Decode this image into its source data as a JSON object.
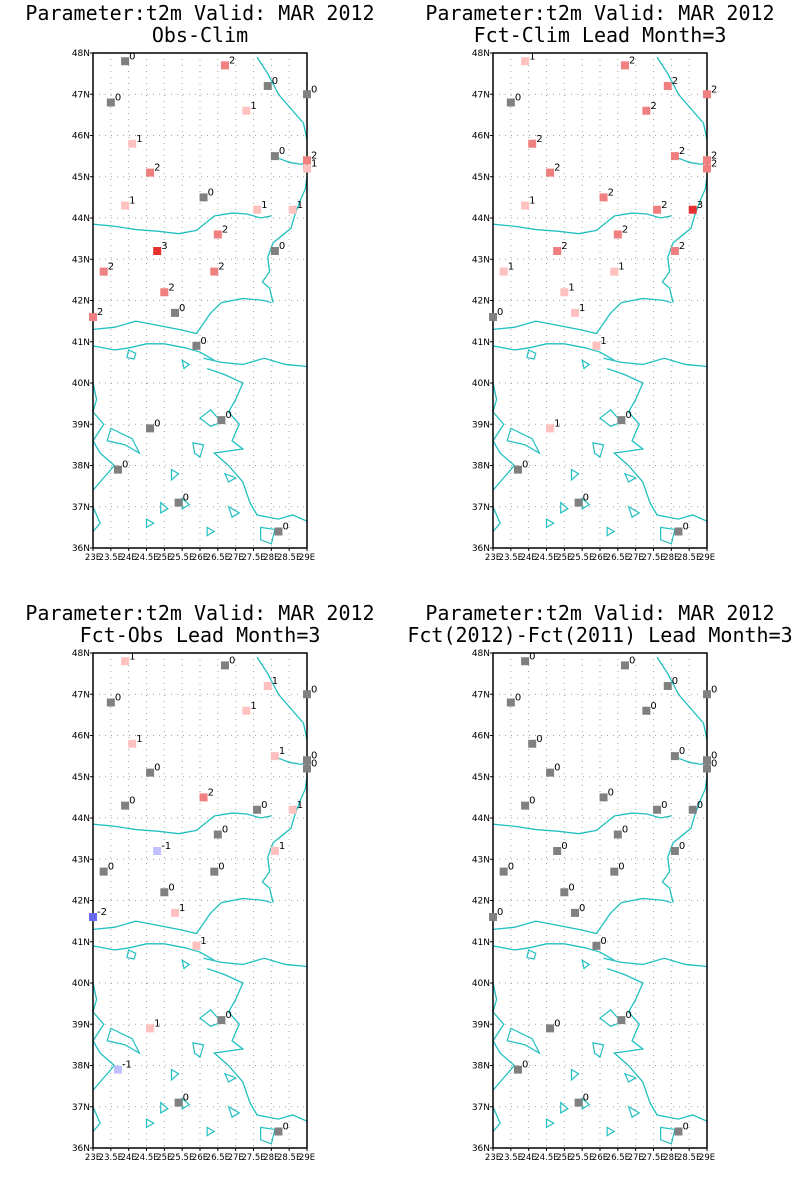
{
  "colors": {
    "coastline": "#20c0c0",
    "zero": "#808080",
    "pos1": "#ffc0c0",
    "pos2": "#f08080",
    "pos3": "#e83030",
    "neg1": "#c0c0ff",
    "neg2": "#6868f0",
    "grid": "#a0a0a0"
  },
  "axes": {
    "lat_ticks": [
      "48N",
      "47N",
      "46N",
      "45N",
      "44N",
      "43N",
      "42N",
      "41N",
      "40N",
      "39N",
      "38N",
      "37N",
      "36N"
    ],
    "lon_ticks": [
      "23E",
      "23.5E",
      "24E",
      "24.5E",
      "25E",
      "25.5E",
      "26E",
      "26.5E",
      "27E",
      "27.5E",
      "28E",
      "28.5E",
      "29E"
    ]
  },
  "panels": [
    {
      "title_line1": "Parameter:t2m Valid: MAR 2012",
      "title_line2": "Obs-Clim",
      "stations": [
        {
          "lon": 23.9,
          "lat": 47.8,
          "v": 0
        },
        {
          "lon": 26.7,
          "lat": 47.7,
          "v": 2
        },
        {
          "lon": 27.9,
          "lat": 47.2,
          "v": 0
        },
        {
          "lon": 29.0,
          "lat": 47.0,
          "v": 0
        },
        {
          "lon": 23.5,
          "lat": 46.8,
          "v": 0
        },
        {
          "lon": 27.3,
          "lat": 46.6,
          "v": 1
        },
        {
          "lon": 24.1,
          "lat": 45.8,
          "v": 1
        },
        {
          "lon": 28.1,
          "lat": 45.5,
          "v": 0
        },
        {
          "lon": 29.0,
          "lat": 45.4,
          "v": 2
        },
        {
          "lon": 24.6,
          "lat": 45.1,
          "v": 2
        },
        {
          "lon": 29.0,
          "lat": 45.2,
          "v": 1
        },
        {
          "lon": 26.1,
          "lat": 44.5,
          "v": 0
        },
        {
          "lon": 23.9,
          "lat": 44.3,
          "v": 1
        },
        {
          "lon": 27.6,
          "lat": 44.2,
          "v": 1
        },
        {
          "lon": 28.6,
          "lat": 44.2,
          "v": 1
        },
        {
          "lon": 26.5,
          "lat": 43.6,
          "v": 2
        },
        {
          "lon": 28.1,
          "lat": 43.2,
          "v": 0
        },
        {
          "lon": 24.8,
          "lat": 43.2,
          "v": 3
        },
        {
          "lon": 23.3,
          "lat": 42.7,
          "v": 2
        },
        {
          "lon": 26.4,
          "lat": 42.7,
          "v": 2
        },
        {
          "lon": 25.0,
          "lat": 42.2,
          "v": 2
        },
        {
          "lon": 25.3,
          "lat": 41.7,
          "v": 0
        },
        {
          "lon": 23.0,
          "lat": 41.6,
          "v": 2
        },
        {
          "lon": 25.9,
          "lat": 40.9,
          "v": 0
        },
        {
          "lon": 26.6,
          "lat": 39.1,
          "v": 0
        },
        {
          "lon": 24.6,
          "lat": 38.9,
          "v": 0
        },
        {
          "lon": 23.7,
          "lat": 37.9,
          "v": 0
        },
        {
          "lon": 25.4,
          "lat": 37.1,
          "v": 0
        },
        {
          "lon": 28.2,
          "lat": 36.4,
          "v": 0
        }
      ]
    },
    {
      "title_line1": "Parameter:t2m Valid: MAR 2012",
      "title_line2": "Fct-Clim Lead Month=3",
      "stations": [
        {
          "lon": 23.9,
          "lat": 47.8,
          "v": 1
        },
        {
          "lon": 26.7,
          "lat": 47.7,
          "v": 2
        },
        {
          "lon": 27.9,
          "lat": 47.2,
          "v": 2
        },
        {
          "lon": 29.0,
          "lat": 47.0,
          "v": 2
        },
        {
          "lon": 23.5,
          "lat": 46.8,
          "v": 0
        },
        {
          "lon": 27.3,
          "lat": 46.6,
          "v": 2
        },
        {
          "lon": 24.1,
          "lat": 45.8,
          "v": 2
        },
        {
          "lon": 28.1,
          "lat": 45.5,
          "v": 2
        },
        {
          "lon": 29.0,
          "lat": 45.4,
          "v": 2
        },
        {
          "lon": 24.6,
          "lat": 45.1,
          "v": 2
        },
        {
          "lon": 29.0,
          "lat": 45.2,
          "v": 2
        },
        {
          "lon": 26.1,
          "lat": 44.5,
          "v": 2
        },
        {
          "lon": 23.9,
          "lat": 44.3,
          "v": 1
        },
        {
          "lon": 27.6,
          "lat": 44.2,
          "v": 2
        },
        {
          "lon": 28.6,
          "lat": 44.2,
          "v": 3
        },
        {
          "lon": 26.5,
          "lat": 43.6,
          "v": 2
        },
        {
          "lon": 28.1,
          "lat": 43.2,
          "v": 2
        },
        {
          "lon": 24.8,
          "lat": 43.2,
          "v": 2
        },
        {
          "lon": 23.3,
          "lat": 42.7,
          "v": 1
        },
        {
          "lon": 26.4,
          "lat": 42.7,
          "v": 1
        },
        {
          "lon": 25.0,
          "lat": 42.2,
          "v": 1
        },
        {
          "lon": 25.3,
          "lat": 41.7,
          "v": 1
        },
        {
          "lon": 23.0,
          "lat": 41.6,
          "v": 0
        },
        {
          "lon": 25.9,
          "lat": 40.9,
          "v": 1
        },
        {
          "lon": 26.6,
          "lat": 39.1,
          "v": 0
        },
        {
          "lon": 24.6,
          "lat": 38.9,
          "v": 1
        },
        {
          "lon": 23.7,
          "lat": 37.9,
          "v": 0
        },
        {
          "lon": 25.4,
          "lat": 37.1,
          "v": 0
        },
        {
          "lon": 28.2,
          "lat": 36.4,
          "v": 0
        }
      ]
    },
    {
      "title_line1": "Parameter:t2m Valid: MAR 2012",
      "title_line2": "Fct-Obs Lead Month=3",
      "stations": [
        {
          "lon": 23.9,
          "lat": 47.8,
          "v": 1
        },
        {
          "lon": 26.7,
          "lat": 47.7,
          "v": 0
        },
        {
          "lon": 27.9,
          "lat": 47.2,
          "v": 1
        },
        {
          "lon": 29.0,
          "lat": 47.0,
          "v": 0
        },
        {
          "lon": 23.5,
          "lat": 46.8,
          "v": 0
        },
        {
          "lon": 27.3,
          "lat": 46.6,
          "v": 1
        },
        {
          "lon": 24.1,
          "lat": 45.8,
          "v": 1
        },
        {
          "lon": 28.1,
          "lat": 45.5,
          "v": 1
        },
        {
          "lon": 29.0,
          "lat": 45.4,
          "v": 0
        },
        {
          "lon": 24.6,
          "lat": 45.1,
          "v": 0
        },
        {
          "lon": 29.0,
          "lat": 45.2,
          "v": 0
        },
        {
          "lon": 26.1,
          "lat": 44.5,
          "v": 2
        },
        {
          "lon": 23.9,
          "lat": 44.3,
          "v": 0
        },
        {
          "lon": 27.6,
          "lat": 44.2,
          "v": 0
        },
        {
          "lon": 28.6,
          "lat": 44.2,
          "v": 1
        },
        {
          "lon": 26.5,
          "lat": 43.6,
          "v": 0
        },
        {
          "lon": 28.1,
          "lat": 43.2,
          "v": 1
        },
        {
          "lon": 24.8,
          "lat": 43.2,
          "v": -1
        },
        {
          "lon": 23.3,
          "lat": 42.7,
          "v": 0
        },
        {
          "lon": 26.4,
          "lat": 42.7,
          "v": 0
        },
        {
          "lon": 25.0,
          "lat": 42.2,
          "v": 0
        },
        {
          "lon": 25.3,
          "lat": 41.7,
          "v": 1
        },
        {
          "lon": 23.0,
          "lat": 41.6,
          "v": -2
        },
        {
          "lon": 25.9,
          "lat": 40.9,
          "v": 1
        },
        {
          "lon": 26.6,
          "lat": 39.1,
          "v": 0
        },
        {
          "lon": 24.6,
          "lat": 38.9,
          "v": 1
        },
        {
          "lon": 23.7,
          "lat": 37.9,
          "v": -1
        },
        {
          "lon": 25.4,
          "lat": 37.1,
          "v": 0
        },
        {
          "lon": 28.2,
          "lat": 36.4,
          "v": 0
        }
      ]
    },
    {
      "title_line1": "Parameter:t2m Valid: MAR 2012",
      "title_line2": "Fct(2012)-Fct(2011) Lead Month=3",
      "stations": [
        {
          "lon": 23.9,
          "lat": 47.8,
          "v": 0
        },
        {
          "lon": 26.7,
          "lat": 47.7,
          "v": 0
        },
        {
          "lon": 27.9,
          "lat": 47.2,
          "v": 0
        },
        {
          "lon": 29.0,
          "lat": 47.0,
          "v": 0
        },
        {
          "lon": 23.5,
          "lat": 46.8,
          "v": 0
        },
        {
          "lon": 27.3,
          "lat": 46.6,
          "v": 0
        },
        {
          "lon": 24.1,
          "lat": 45.8,
          "v": 0
        },
        {
          "lon": 28.1,
          "lat": 45.5,
          "v": 0
        },
        {
          "lon": 29.0,
          "lat": 45.4,
          "v": 0
        },
        {
          "lon": 24.6,
          "lat": 45.1,
          "v": 0
        },
        {
          "lon": 29.0,
          "lat": 45.2,
          "v": 0
        },
        {
          "lon": 26.1,
          "lat": 44.5,
          "v": 0
        },
        {
          "lon": 23.9,
          "lat": 44.3,
          "v": 0
        },
        {
          "lon": 27.6,
          "lat": 44.2,
          "v": 0
        },
        {
          "lon": 28.6,
          "lat": 44.2,
          "v": 0
        },
        {
          "lon": 26.5,
          "lat": 43.6,
          "v": 0
        },
        {
          "lon": 28.1,
          "lat": 43.2,
          "v": 0
        },
        {
          "lon": 24.8,
          "lat": 43.2,
          "v": 0
        },
        {
          "lon": 23.3,
          "lat": 42.7,
          "v": 0
        },
        {
          "lon": 26.4,
          "lat": 42.7,
          "v": 0
        },
        {
          "lon": 25.0,
          "lat": 42.2,
          "v": 0
        },
        {
          "lon": 25.3,
          "lat": 41.7,
          "v": 0
        },
        {
          "lon": 23.0,
          "lat": 41.6,
          "v": 0
        },
        {
          "lon": 25.9,
          "lat": 40.9,
          "v": 0
        },
        {
          "lon": 26.6,
          "lat": 39.1,
          "v": 0
        },
        {
          "lon": 24.6,
          "lat": 38.9,
          "v": 0
        },
        {
          "lon": 23.7,
          "lat": 37.9,
          "v": 0
        },
        {
          "lon": 25.4,
          "lat": 37.1,
          "v": 0
        },
        {
          "lon": 28.2,
          "lat": 36.4,
          "v": 0
        }
      ]
    }
  ]
}
